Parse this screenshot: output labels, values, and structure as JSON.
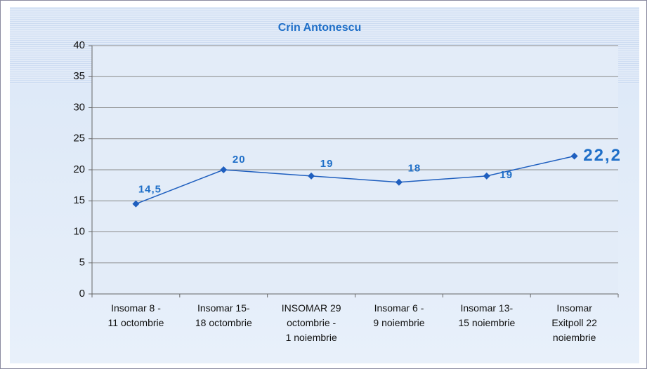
{
  "chart_data": {
    "type": "line",
    "title": "Crin Antonescu",
    "categories": [
      "Insomar 8 -\n11 octombrie",
      "Insomar 15-\n18 octombrie",
      "INSOMAR 29\noctombrie -\n1 noiembrie",
      "Insomar 6 -\n9 noiembrie",
      "Insomar 13-\n15 noiembrie",
      "Insomar\nExitpoll 22\nnoiembrie"
    ],
    "series": [
      {
        "name": "Crin Antonescu",
        "color": "#1f5fbf",
        "values": [
          14.5,
          20,
          19,
          18,
          19,
          22.2
        ],
        "value_labels": [
          "14,5",
          "20",
          "19",
          "18",
          "19",
          "22,2"
        ]
      }
    ],
    "ylim": [
      0,
      40
    ],
    "yticks": [
      0,
      5,
      10,
      15,
      20,
      25,
      30,
      35,
      40
    ],
    "grid": true
  }
}
